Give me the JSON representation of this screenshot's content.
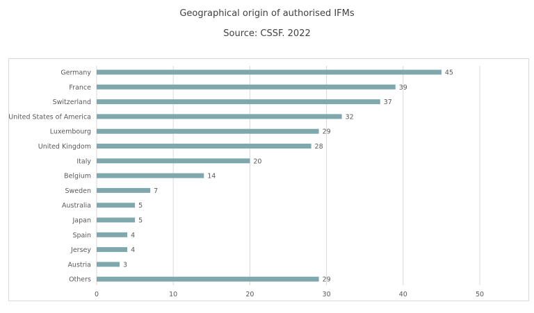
{
  "chart_data": {
    "type": "bar",
    "orientation": "horizontal",
    "title": "Geographical origin of authorised IFMs",
    "subtitle": "Source: CSSF. 2022",
    "categories": [
      "Germany",
      "France",
      "Switzerland",
      "United States of America",
      "Luxembourg",
      "United Kingdom",
      "Italy",
      "Belgium",
      "Sweden",
      "Australia",
      "Japan",
      "Spain",
      "Jersey",
      "Austria",
      "Others"
    ],
    "values": [
      45,
      39,
      37,
      32,
      29,
      28,
      20,
      14,
      7,
      5,
      5,
      4,
      4,
      3,
      29
    ],
    "xlim": [
      0,
      50
    ],
    "xticks": [
      0,
      10,
      20,
      30,
      40,
      50
    ],
    "grid": true,
    "bar_color": "#7fa8ad",
    "grid_color": "#d9d9d9"
  }
}
